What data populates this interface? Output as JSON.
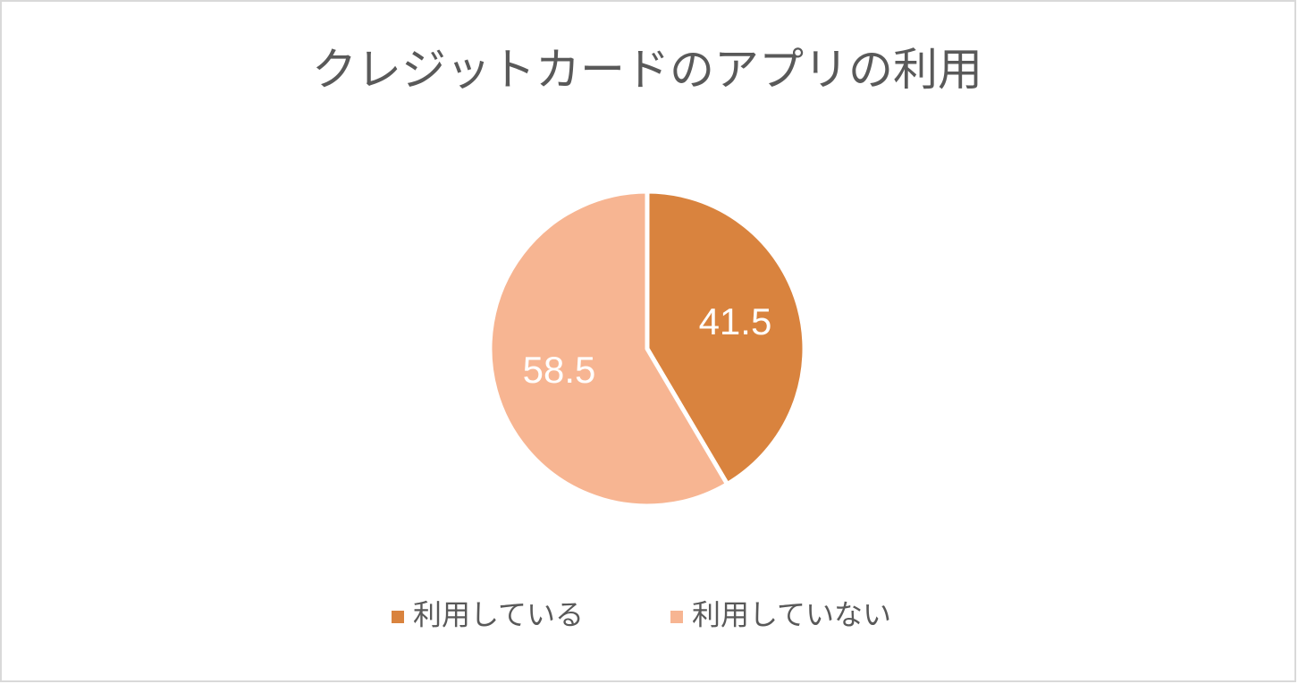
{
  "chart_data": {
    "type": "pie",
    "title": "クレジットカードのアプリの利用",
    "categories": [
      "利用している",
      "利用していない"
    ],
    "values": [
      41.5,
      58.5
    ],
    "colors": [
      "#d9833e",
      "#f7b592"
    ],
    "legend": "bottom"
  }
}
